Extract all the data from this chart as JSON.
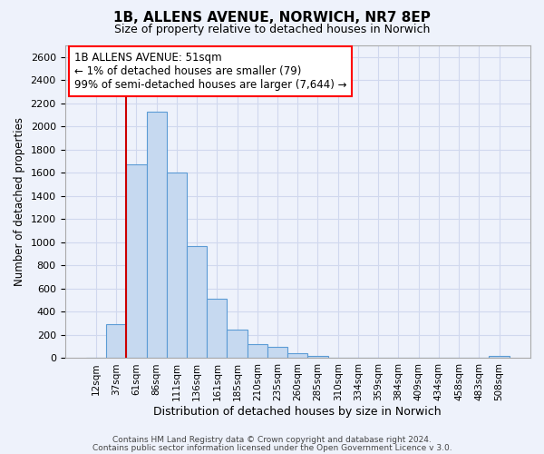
{
  "title_line1": "1B, ALLENS AVENUE, NORWICH, NR7 8EP",
  "title_line2": "Size of property relative to detached houses in Norwich",
  "xlabel": "Distribution of detached houses by size in Norwich",
  "ylabel": "Number of detached properties",
  "bar_labels": [
    "12sqm",
    "37sqm",
    "61sqm",
    "86sqm",
    "111sqm",
    "136sqm",
    "161sqm",
    "185sqm",
    "210sqm",
    "235sqm",
    "260sqm",
    "285sqm",
    "310sqm",
    "334sqm",
    "359sqm",
    "384sqm",
    "409sqm",
    "434sqm",
    "458sqm",
    "483sqm",
    "508sqm"
  ],
  "bar_values": [
    5,
    290,
    1670,
    2130,
    1600,
    970,
    510,
    250,
    120,
    100,
    40,
    20,
    5,
    5,
    5,
    5,
    5,
    5,
    5,
    5,
    20
  ],
  "bar_color": "#c6d9f0",
  "bar_edge_color": "#5b9bd5",
  "ylim": [
    0,
    2700
  ],
  "yticks": [
    0,
    200,
    400,
    600,
    800,
    1000,
    1200,
    1400,
    1600,
    1800,
    2000,
    2200,
    2400,
    2600
  ],
  "annotation_box_text": "1B ALLENS AVENUE: 51sqm\n← 1% of detached houses are smaller (79)\n99% of semi-detached houses are larger (7,644) →",
  "red_line_color": "#cc0000",
  "background_color": "#eef2fb",
  "grid_color": "#d0d8ee",
  "footer_line1": "Contains HM Land Registry data © Crown copyright and database right 2024.",
  "footer_line2": "Contains public sector information licensed under the Open Government Licence v 3.0."
}
